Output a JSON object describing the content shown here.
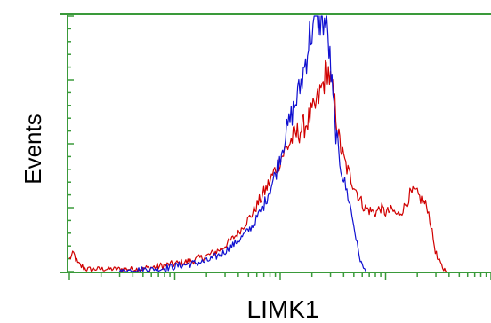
{
  "chart_data": {
    "type": "line",
    "xlabel": "LIMK1",
    "ylabel": "Events",
    "x_scale": "log",
    "xlim": [
      1,
      10000
    ],
    "ylim": [
      0,
      100
    ],
    "grid": false,
    "legend": "none",
    "colors": {
      "frame": "#3a9a3a",
      "series_red": "#d00000",
      "series_blue": "#1010d0",
      "text": "#000000"
    },
    "series": [
      {
        "color": "#d00000",
        "x": [
          1.0,
          1.1,
          1.2,
          1.3,
          1.5,
          2,
          3,
          5,
          7,
          10,
          14,
          20,
          28,
          40,
          55,
          75,
          100,
          130,
          170,
          210,
          250,
          280,
          300,
          330,
          360,
          400,
          450,
          500,
          560,
          630,
          700,
          800,
          900,
          1000,
          1150,
          1300,
          1500,
          1700,
          1900,
          2100,
          2300,
          2500,
          2700,
          2900,
          3100,
          3400,
          3800
        ],
        "y": [
          5,
          7,
          3,
          2,
          1,
          1,
          1,
          1,
          2,
          3,
          4,
          6,
          9,
          15,
          23,
          33,
          44,
          52,
          57,
          63,
          72,
          80,
          74,
          65,
          52,
          44,
          38,
          34,
          29,
          25,
          24,
          23,
          25,
          23,
          24,
          22,
          25,
          30,
          31,
          29,
          27,
          25,
          18,
          10,
          5,
          2,
          0
        ]
      },
      {
        "color": "#1010d0",
        "x": [
          3,
          5,
          7,
          10,
          14,
          20,
          28,
          40,
          55,
          70,
          90,
          110,
          130,
          150,
          170,
          190,
          210,
          230,
          250,
          270,
          290,
          310,
          330,
          360,
          400,
          450,
          500,
          550,
          600,
          650
        ],
        "y": [
          0,
          1,
          1,
          2,
          3,
          4,
          7,
          12,
          18,
          26,
          38,
          52,
          62,
          70,
          80,
          92,
          97,
          99,
          100,
          97,
          88,
          72,
          58,
          45,
          36,
          28,
          18,
          8,
          2,
          0
        ]
      }
    ]
  }
}
